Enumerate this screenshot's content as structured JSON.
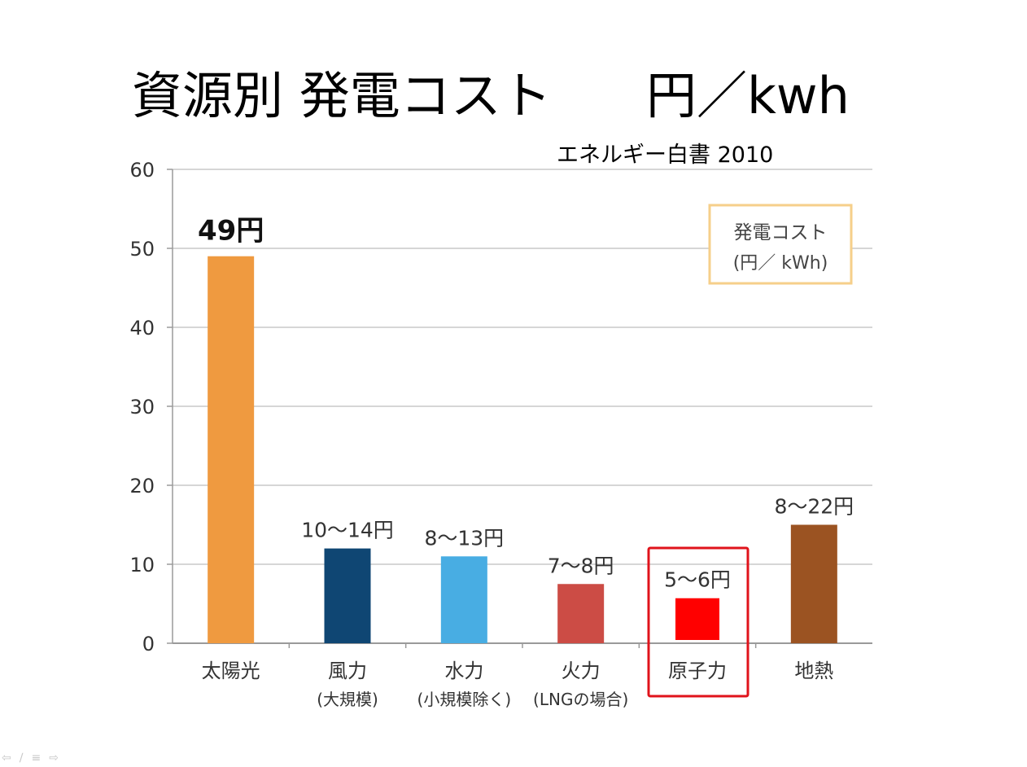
{
  "slide": {
    "title_main": "資源別 発電コスト",
    "title_unit": "円／kwh",
    "source": "エネルギー白書  2010",
    "nav_icons": [
      "arrow-left-icon",
      "pen-icon",
      "menu-icon",
      "arrow-right-icon"
    ]
  },
  "chart_data": {
    "type": "bar",
    "title": "資源別 発電コスト",
    "xlabel": "",
    "ylabel": "",
    "ylim": [
      0,
      60
    ],
    "yticks": [
      0,
      10,
      20,
      30,
      40,
      50,
      60
    ],
    "grid": true,
    "legend": {
      "position": "top-right",
      "line1": "発電コスト",
      "line2": "(円／ kWh)"
    },
    "categories": [
      {
        "label": "太陽光",
        "sublabel": ""
      },
      {
        "label": "風力",
        "sublabel": "(大規模)"
      },
      {
        "label": "水力",
        "sublabel": "(小規模除く)"
      },
      {
        "label": "火力",
        "sublabel": "(LNGの場合)"
      },
      {
        "label": "原子力",
        "sublabel": ""
      },
      {
        "label": "地熱",
        "sublabel": ""
      }
    ],
    "values": [
      49,
      12,
      11,
      7.5,
      5.7,
      15
    ],
    "data_labels": [
      "49円",
      "10～14円",
      "8～13円",
      "7～8円",
      "5～6円",
      "8～22円"
    ],
    "colors": [
      "#ef9a40",
      "#0f4673",
      "#48ade3",
      "#cc4c45",
      "#ff0000",
      "#9b5322"
    ],
    "gridline_color": "#c8c8c8",
    "axis_color": "#9a9a9a",
    "legend_border_color": "#f6cf8a",
    "highlight": {
      "category": "原子力",
      "color": "#e0131b"
    }
  }
}
